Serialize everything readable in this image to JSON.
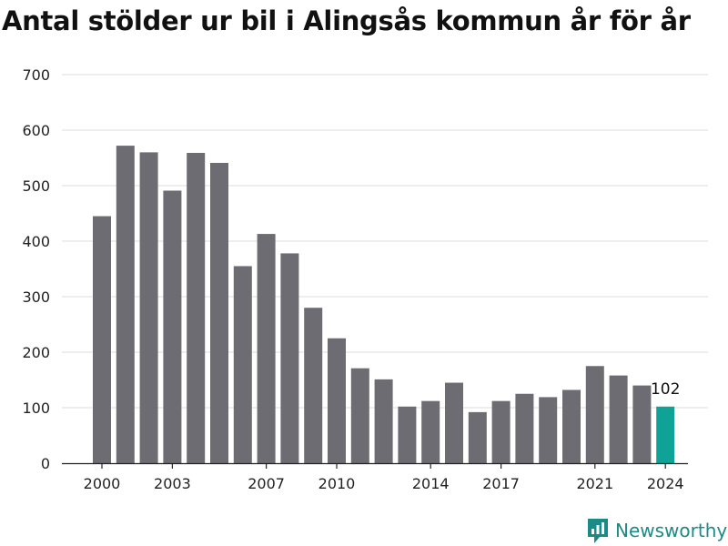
{
  "title": "Antal stölder ur bil i Alingsås kommun år för år",
  "brand": {
    "name": "Newsworthy",
    "icon": "newsworthy-logo-icon"
  },
  "colors": {
    "bar": "#6d6c73",
    "highlight": "#0fa296",
    "grid": "#dddddd",
    "text": "#222222",
    "brand": "#1c8a87"
  },
  "chart_data": {
    "type": "bar",
    "title": "Antal stölder ur bil i Alingsås kommun år för år",
    "xlabel": "",
    "ylabel": "",
    "ylim": [
      0,
      700
    ],
    "yticks": [
      0,
      100,
      200,
      300,
      400,
      500,
      600,
      700
    ],
    "grid": true,
    "categories": [
      2000,
      2001,
      2002,
      2003,
      2004,
      2005,
      2006,
      2007,
      2008,
      2009,
      2010,
      2011,
      2012,
      2013,
      2014,
      2015,
      2016,
      2017,
      2018,
      2019,
      2020,
      2021,
      2022,
      2023,
      2024
    ],
    "xtick_labels": [
      2000,
      2003,
      2007,
      2010,
      2014,
      2017,
      2021,
      2024
    ],
    "values": [
      445,
      572,
      560,
      491,
      559,
      541,
      355,
      413,
      378,
      280,
      225,
      171,
      151,
      102,
      112,
      145,
      92,
      112,
      125,
      119,
      132,
      175,
      158,
      140,
      102
    ],
    "highlight_category": 2024,
    "data_labels": [
      {
        "category": 2024,
        "text": "102"
      }
    ]
  }
}
